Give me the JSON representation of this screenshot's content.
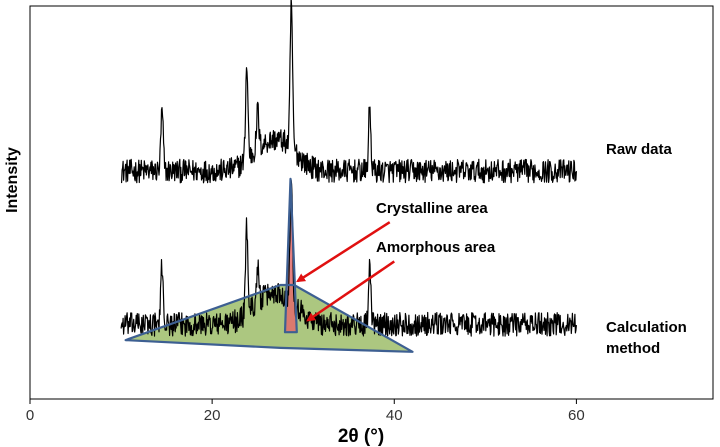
{
  "chart_data": {
    "type": "line",
    "title": "",
    "xlabel": "2θ (°)",
    "ylabel": "Intensity",
    "xlim": [
      0,
      75
    ],
    "xticks": [
      0,
      20,
      40,
      60
    ],
    "yticks": [],
    "grid": false,
    "legend": "none",
    "series": [
      {
        "label": "Raw data",
        "color": "#000000",
        "x_range": [
          10,
          60
        ],
        "baseline": 0.58,
        "noise": 0.03,
        "peaks": [
          [
            14.5,
            0.15
          ],
          [
            23.8,
            0.24
          ],
          [
            25.0,
            0.1
          ],
          [
            28.7,
            0.37
          ],
          [
            37.3,
            0.16
          ]
        ],
        "humps": [
          [
            25.5,
            0.05
          ],
          [
            28.0,
            0.06
          ]
        ]
      },
      {
        "label": "Calculation method",
        "color": "#000000",
        "x_range": [
          10,
          60
        ],
        "baseline": 0.19,
        "noise": 0.03,
        "peaks": [
          [
            14.5,
            0.15
          ],
          [
            23.8,
            0.22
          ],
          [
            25.0,
            0.09
          ],
          [
            28.7,
            0.33
          ],
          [
            37.3,
            0.14
          ]
        ],
        "humps": [
          [
            25.5,
            0.05
          ],
          [
            28.0,
            0.06
          ]
        ]
      }
    ],
    "regions": [
      {
        "name": "Crystalline area",
        "fill": "#e36b6b",
        "stroke": "#3d5f92",
        "points": [
          [
            28.0,
            0.17
          ],
          [
            28.6,
            0.56
          ],
          [
            29.3,
            0.17
          ]
        ]
      },
      {
        "name": "Amorphous area",
        "fill": "#9dbd6a",
        "stroke": "#3d5f92",
        "points": [
          [
            10.5,
            0.15
          ],
          [
            27.5,
            0.29
          ],
          [
            29.0,
            0.29
          ],
          [
            42.0,
            0.12
          ],
          [
            27.5,
            0.13
          ]
        ]
      }
    ],
    "annotations": [
      {
        "text": "Raw data",
        "at": [
          62,
          0.59
        ]
      },
      {
        "text": "Calculation method",
        "at": [
          62,
          0.2
        ]
      },
      {
        "text": "Crystalline area",
        "arrow_from": [
          39.5,
          0.45
        ],
        "arrow_to": [
          29.4,
          0.3
        ]
      },
      {
        "text": "Amorphous area",
        "arrow_from": [
          40,
          0.35
        ],
        "arrow_to": [
          30.5,
          0.2
        ]
      }
    ]
  }
}
